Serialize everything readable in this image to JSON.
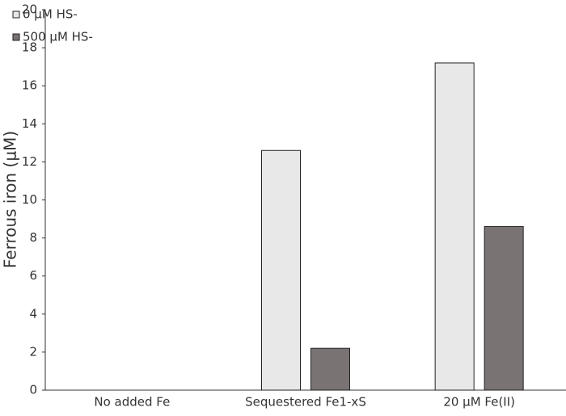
{
  "chart_data": {
    "type": "bar",
    "y_label": "Ferrous iron (μM)",
    "categories": [
      "No added Fe",
      "Sequestered Fe1-xS",
      "20 μM Fe(II)"
    ],
    "series": [
      {
        "name": "0 μM HS-",
        "color": "#e8e8e8",
        "values": [
          0,
          12.6,
          17.2
        ]
      },
      {
        "name": "500 μM HS-",
        "color": "#7a7373",
        "values": [
          0,
          2.2,
          8.6
        ]
      }
    ],
    "ylim": [
      0,
      20
    ],
    "yticks": [
      0,
      2,
      4,
      6,
      8,
      10,
      12,
      14,
      16,
      18,
      20
    ],
    "legend": "upper-left"
  }
}
